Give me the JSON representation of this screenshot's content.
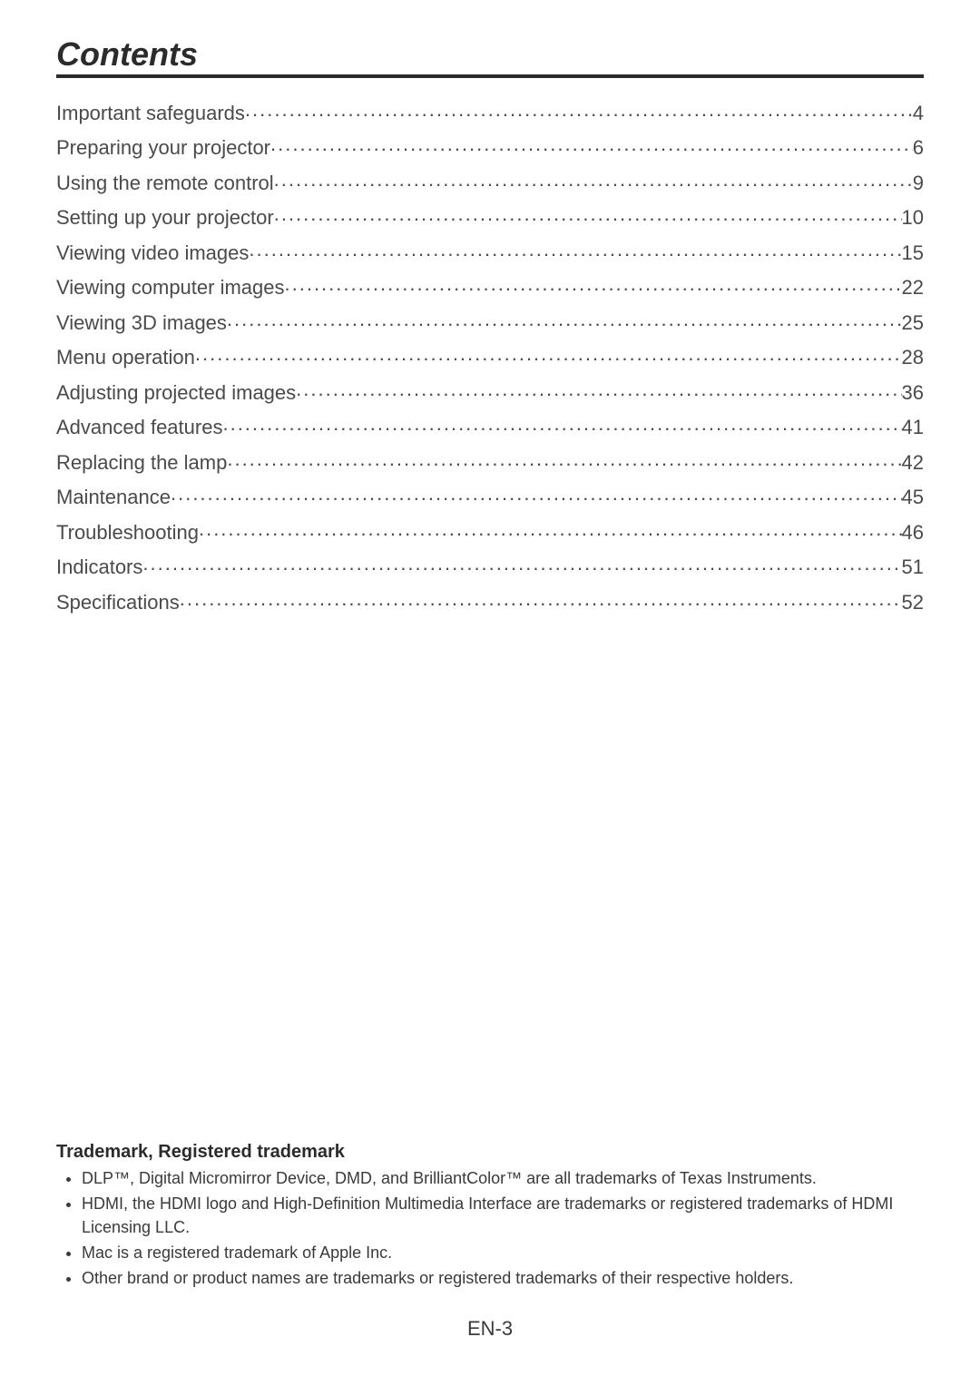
{
  "heading": "Contents",
  "toc": [
    {
      "label": "Important safeguards",
      "page": "4"
    },
    {
      "label": "Preparing your projector",
      "page": "6"
    },
    {
      "label": "Using the remote control",
      "page": "9"
    },
    {
      "label": "Setting up your projector",
      "page": "10"
    },
    {
      "label": "Viewing video images",
      "page": "15"
    },
    {
      "label": "Viewing computer images",
      "page": "22"
    },
    {
      "label": "Viewing 3D images",
      "page": "25"
    },
    {
      "label": "Menu operation",
      "page": "28"
    },
    {
      "label": "Adjusting projected images",
      "page": "36"
    },
    {
      "label": "Advanced features",
      "page": "41"
    },
    {
      "label": "Replacing the lamp",
      "page": "42"
    },
    {
      "label": "Maintenance",
      "page": "45"
    },
    {
      "label": "Troubleshooting",
      "page": "46"
    },
    {
      "label": "Indicators",
      "page": "51"
    },
    {
      "label": "Specifications",
      "page": "52"
    }
  ],
  "trademark": {
    "heading": "Trademark, Registered trademark",
    "items": [
      "DLP™, Digital Micromirror Device, DMD, and BrilliantColor™ are all trademarks of Texas Instruments.",
      "HDMI, the HDMI logo and High-Definition Multimedia Interface are trademarks or registered trademarks of HDMI Licensing LLC.",
      "Mac is a registered trademark of Apple Inc.",
      "Other brand or product names are trademarks or registered trademarks of their respective holders."
    ]
  },
  "page_number": "EN-3"
}
